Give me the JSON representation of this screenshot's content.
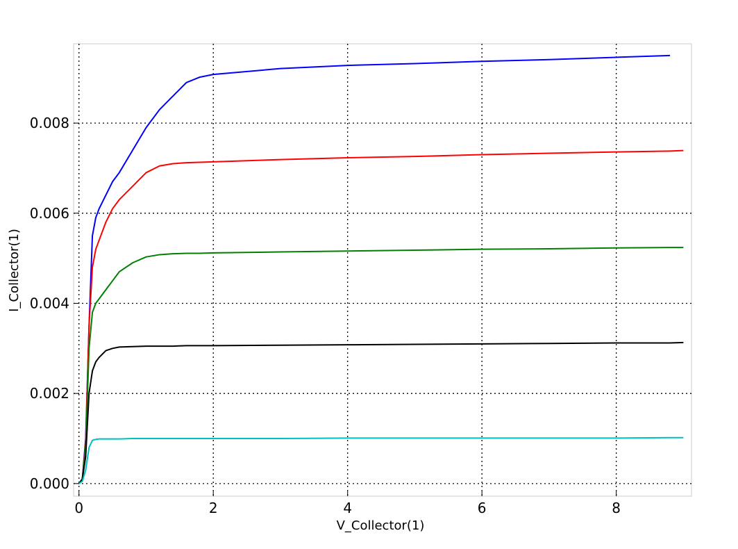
{
  "chart_data": {
    "type": "line",
    "x_label": "V_Collector(1)",
    "y_label": "I_Collector(1)",
    "x": [
      0,
      0.05,
      0.1,
      0.15,
      0.2,
      0.25,
      0.3,
      0.4,
      0.5,
      0.6,
      0.8,
      1.0,
      1.2,
      1.4,
      1.6,
      1.8,
      2,
      3,
      4,
      5,
      6,
      7,
      8,
      8.8,
      9.0
    ],
    "series": [
      {
        "color": "#0000ff",
        "values": [
          0,
          0.0001,
          0.001,
          0.0035,
          0.0055,
          0.0059,
          0.0061,
          0.0064,
          0.0067,
          0.0069,
          0.0074,
          0.0079,
          0.0083,
          0.0086,
          0.0089,
          0.00902,
          0.00908,
          0.00921,
          0.00928,
          0.00932,
          0.00937,
          0.00941,
          0.00946,
          0.0095,
          null
        ]
      },
      {
        "color": "#ff0000",
        "values": [
          0,
          0.0001,
          0.0009,
          0.0035,
          0.0048,
          0.0052,
          0.0054,
          0.0058,
          0.0061,
          0.0063,
          0.0066,
          0.0069,
          0.00705,
          0.0071,
          0.00712,
          0.00713,
          0.00714,
          0.00719,
          0.00723,
          0.00726,
          0.0073,
          0.00733,
          0.00736,
          0.00738,
          0.00739
        ]
      },
      {
        "color": "#008000",
        "values": [
          0,
          0.0001,
          0.0008,
          0.003,
          0.0038,
          0.004,
          0.0041,
          0.0043,
          0.0045,
          0.0047,
          0.0049,
          0.00503,
          0.00508,
          0.0051,
          0.00511,
          0.00511,
          0.00512,
          0.00514,
          0.00516,
          0.00518,
          0.0052,
          0.00521,
          0.00523,
          0.00524,
          0.00524
        ]
      },
      {
        "color": "#000000",
        "values": [
          0,
          0.0001,
          0.0006,
          0.002,
          0.0025,
          0.0027,
          0.0028,
          0.00295,
          0.003,
          0.00303,
          0.00304,
          0.00305,
          0.00305,
          0.00305,
          0.00306,
          0.00306,
          0.00306,
          0.00307,
          0.00308,
          0.00309,
          0.0031,
          0.00311,
          0.00312,
          0.00312,
          0.00313
        ]
      },
      {
        "color": "#00bfbf",
        "values": [
          0,
          5e-05,
          0.0003,
          0.0008,
          0.00096,
          0.00098,
          0.00099,
          0.00099,
          0.00099,
          0.00099,
          0.001,
          0.001,
          0.001,
          0.001,
          0.001,
          0.001,
          0.001,
          0.001,
          0.00101,
          0.00101,
          0.00101,
          0.00101,
          0.00101,
          0.00102,
          0.00102
        ]
      }
    ],
    "xlim": [
      -0.08,
      9.12
    ],
    "ylim": [
      -0.00028,
      0.00976
    ],
    "xticks": [
      0,
      2,
      4,
      6,
      8
    ],
    "yticks": [
      {
        "value": 0,
        "label": "0.000"
      },
      0.002,
      0.004,
      0.006,
      0.008
    ],
    "grid": true
  }
}
